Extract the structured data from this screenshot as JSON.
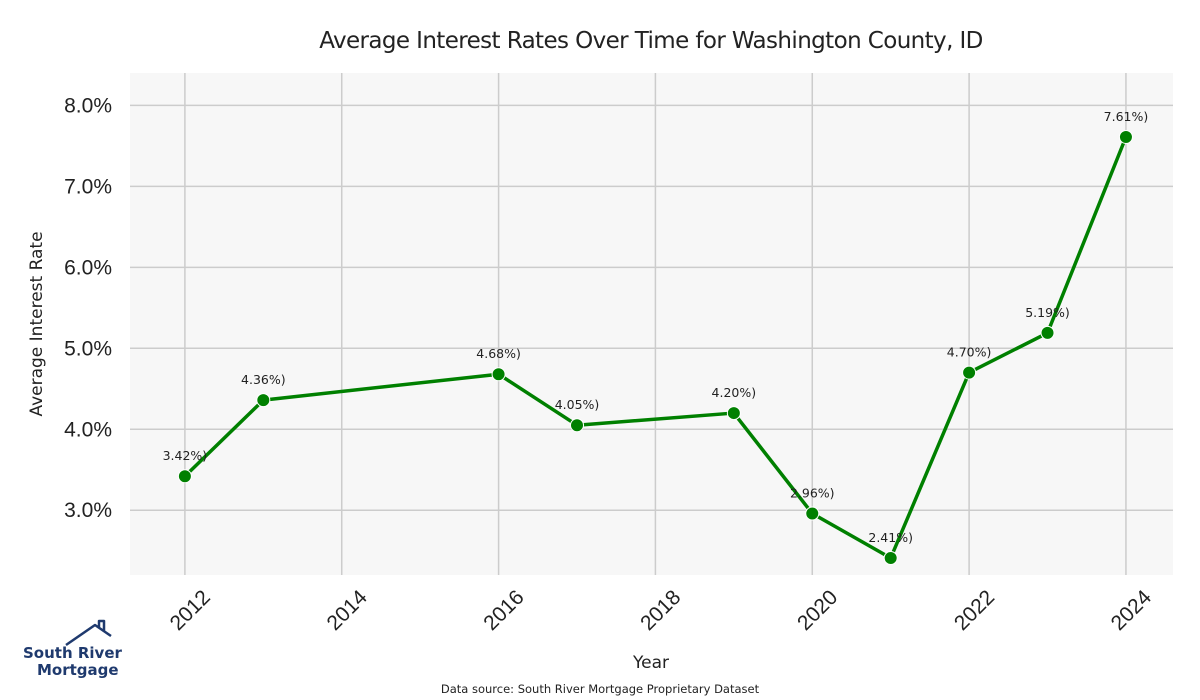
{
  "chart_data": {
    "type": "line",
    "title": "Average Interest Rates Over Time for Washington County, ID",
    "xlabel": "Year",
    "ylabel": "Average Interest Rate",
    "x": [
      2012,
      2013,
      2016,
      2017,
      2019,
      2020,
      2021,
      2022,
      2023,
      2024
    ],
    "values": [
      3.42,
      4.36,
      4.68,
      4.05,
      4.2,
      2.96,
      2.41,
      4.7,
      5.19,
      7.61
    ],
    "point_labels": [
      "3.42%)",
      "4.36%)",
      "4.68%)",
      "4.05%)",
      "4.20%)",
      "2.96%)",
      "2.41%)",
      "4.70%)",
      "5.19%)",
      "7.61%)"
    ],
    "x_ticks": [
      "2012",
      "2014",
      "2016",
      "2018",
      "2020",
      "2022",
      "2024"
    ],
    "y_ticks": [
      "3.0%",
      "4.0%",
      "5.0%",
      "6.0%",
      "7.0%",
      "8.0%"
    ],
    "xlim": [
      2011.3,
      2024.6
    ],
    "ylim": [
      2.2,
      8.4
    ],
    "grid": true,
    "line_color": "#008000",
    "plot_background": "#f7f7f7",
    "grid_color": "#cccccc"
  },
  "footer": {
    "source": "Data source: South River Mortgage Proprietary Dataset"
  },
  "logo": {
    "line1": "South River",
    "line2": "Mortgage",
    "icon": "house-roof-icon",
    "color": "#1f3a6e"
  }
}
